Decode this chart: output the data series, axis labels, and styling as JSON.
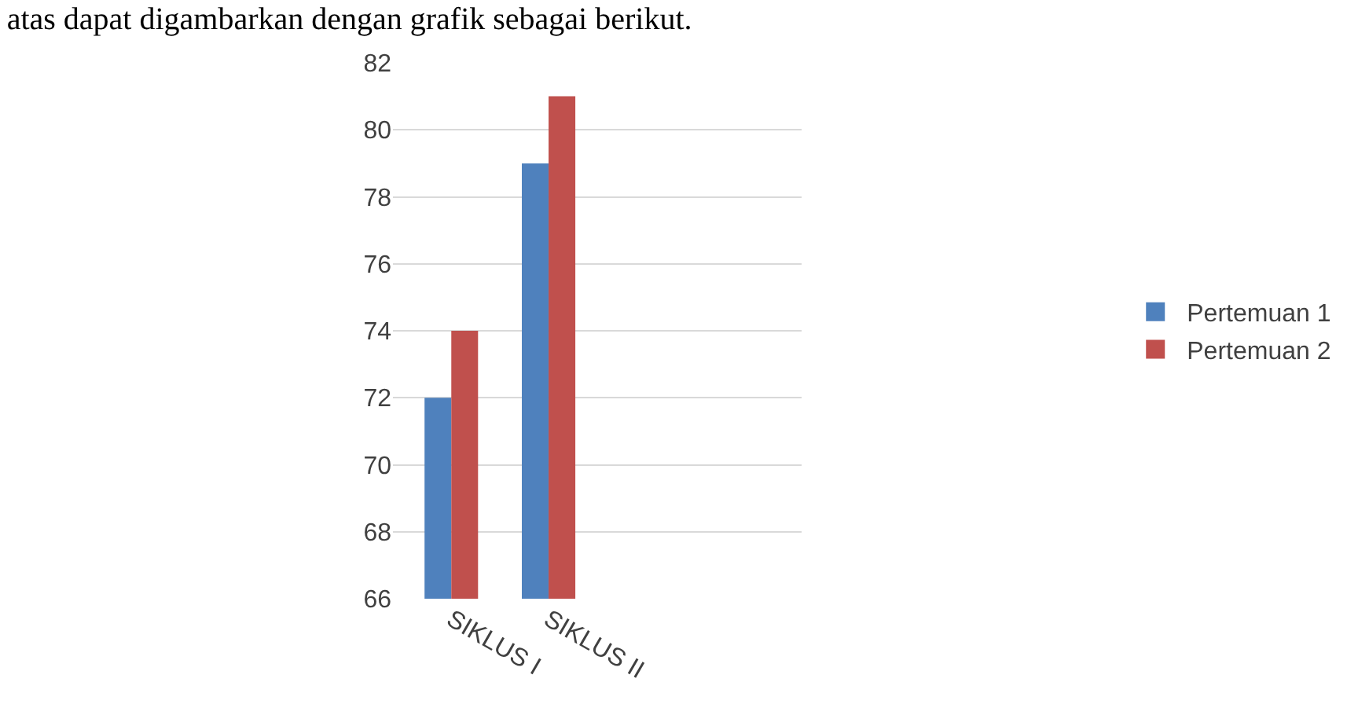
{
  "chart_data": {
    "type": "bar",
    "title": "atas dapat digambarkan dengan grafik sebagai berikut.",
    "categories": [
      "SIKLUS I",
      "SIKLUS II"
    ],
    "series": [
      {
        "name": "Pertemuan 1",
        "color": "#4f81bd",
        "values": [
          72,
          79
        ]
      },
      {
        "name": "Pertemuan 2",
        "color": "#c0504d",
        "values": [
          74,
          81
        ]
      }
    ],
    "ylim": [
      66,
      82
    ],
    "yticks": [
      66,
      68,
      70,
      72,
      74,
      76,
      78,
      80,
      82
    ],
    "grid": "y",
    "legend": "right"
  }
}
